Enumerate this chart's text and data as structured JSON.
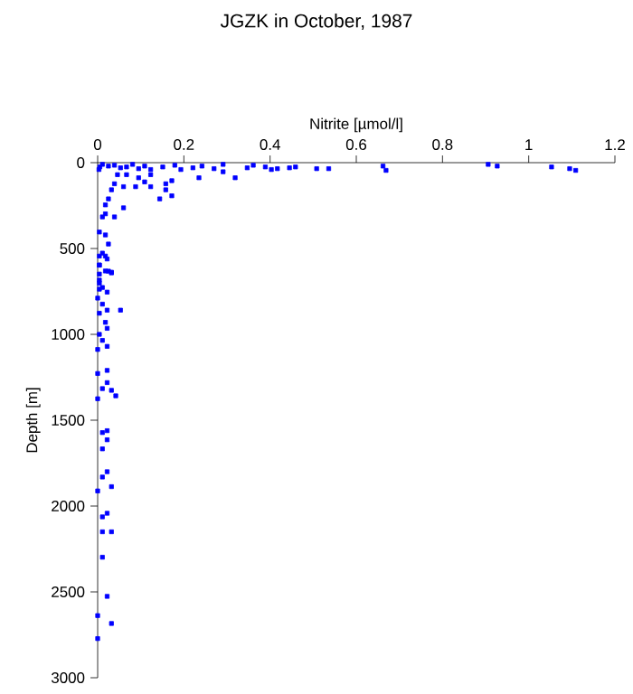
{
  "chart_data": {
    "type": "scatter",
    "title": "JGZK in October, 1987",
    "xlabel": "Nitrite [µmol/l]",
    "ylabel": "Depth [m]",
    "xlim": [
      0,
      1.2
    ],
    "xticks": [
      0,
      0.2,
      0.4,
      0.6,
      0.8,
      1,
      1.2
    ],
    "ylim": [
      3000,
      0
    ],
    "yticks": [
      0,
      500,
      1000,
      1500,
      2000,
      2500,
      3000
    ],
    "marker": "square",
    "x": [
      0.003,
      0.005,
      0.011,
      0.025,
      0.039,
      0.053,
      0.067,
      0.081,
      0.095,
      0.109,
      0.123,
      0.151,
      0.179,
      0.193,
      0.221,
      0.242,
      0.27,
      0.291,
      0.347,
      0.361,
      0.389,
      0.403,
      0.417,
      0.445,
      0.459,
      0.508,
      0.536,
      0.662,
      0.669,
      0.906,
      0.927,
      1.053,
      1.095,
      1.109,
      0.046,
      0.067,
      0.095,
      0.123,
      0.172,
      0.235,
      0.319,
      0.291,
      0.06,
      0.088,
      0.109,
      0.123,
      0.158,
      0.172,
      0.144,
      0.158,
      0.032,
      0.039,
      0.025,
      0.06,
      0.039,
      0.018,
      0.018,
      0.011,
      0.004,
      0.018,
      0.025,
      0.011,
      0.018,
      0.004,
      0.025,
      0.032,
      0.004,
      0.004,
      0.011,
      0.004,
      0.022,
      0.004,
      0.018,
      0.032,
      0.004,
      0.004,
      0.022,
      0.0,
      0.011,
      0.022,
      0.053,
      0.004,
      0.018,
      0.022,
      0.004,
      0.011,
      0.022,
      0.0,
      0.022,
      0.0,
      0.022,
      0.011,
      0.032,
      0.042,
      0.0,
      0.011,
      0.022,
      0.022,
      0.011,
      0.022,
      0.011,
      0.0,
      0.032,
      0.022,
      0.011,
      0.011,
      0.032,
      0.011,
      0.022,
      0.0,
      0.032,
      0.0
    ],
    "series": [
      {
        "color": "#0000ff",
        "values": [
          40,
          25,
          10,
          20,
          15,
          30,
          25,
          10,
          35,
          20,
          40,
          25,
          15,
          40,
          30,
          20,
          35,
          10,
          30,
          15,
          25,
          40,
          35,
          30,
          25,
          35,
          35,
          20,
          45,
          10,
          20,
          25,
          35,
          45,
          70,
          70,
          88,
          70,
          105,
          88,
          88,
          53,
          140,
          140,
          112,
          140,
          123,
          193,
          211,
          158,
          158,
          123,
          211,
          263,
          316,
          246,
          298,
          316,
          404,
          421,
          474,
          527,
          544,
          597,
          632,
          642,
          649,
          702,
          727,
          544,
          561,
          596,
          631,
          638,
          684,
          737,
          754,
          789,
          824,
          859,
          859,
          877,
          930,
          965,
          1000,
          1035,
          1070,
          1088,
          1210,
          1228,
          1281,
          1316,
          1326,
          1358,
          1375,
          1572,
          1561,
          1614,
          1667,
          1800,
          1831,
          1912,
          1887,
          2042,
          2063,
          2150,
          2150,
          2298,
          2526,
          2638,
          2684,
          2772
        ]
      }
    ]
  }
}
